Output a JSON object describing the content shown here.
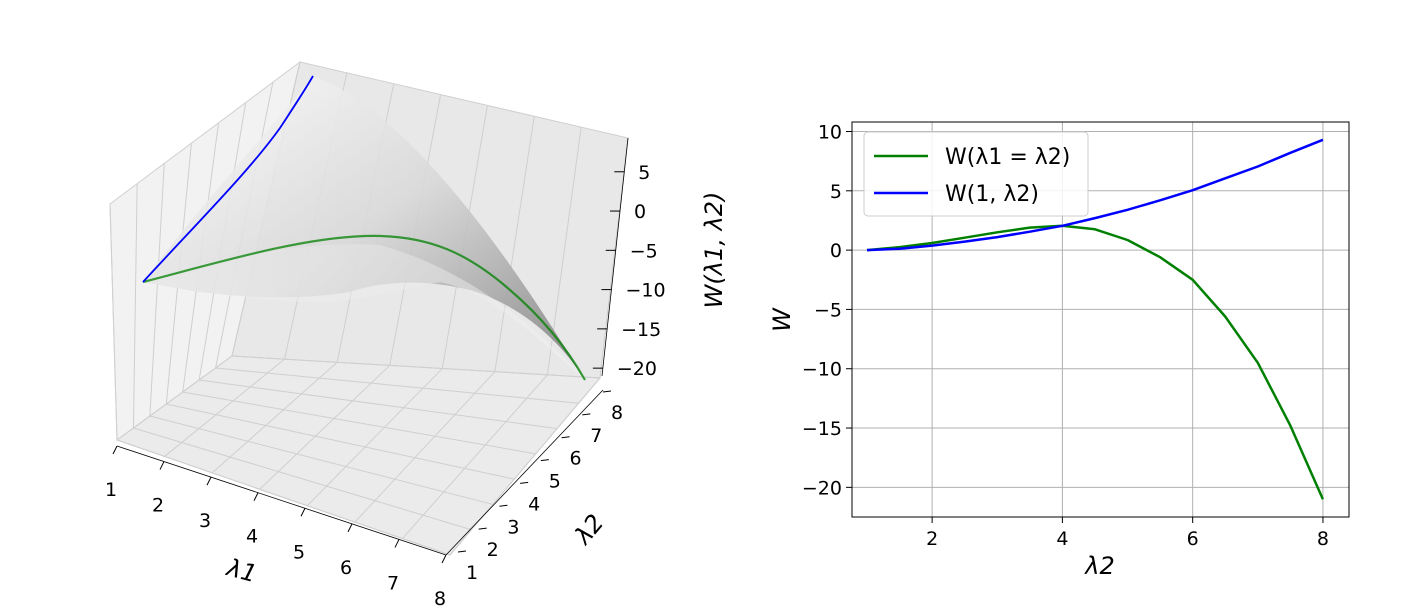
{
  "chart_data": [
    {
      "type": "surface3d",
      "title": "",
      "xlabel": "λ1",
      "ylabel": "λ2",
      "zlabel": "W(λ1, λ2)",
      "xticks": [
        "1",
        "2",
        "3",
        "4",
        "5",
        "6",
        "7",
        "8"
      ],
      "yticks": [
        "1",
        "2",
        "3",
        "4",
        "5",
        "6",
        "7",
        "8"
      ],
      "zticks": [
        "5",
        "0",
        "−5",
        "−10",
        "−15",
        "−20"
      ],
      "xlim": [
        1,
        8
      ],
      "ylim": [
        1,
        8
      ],
      "zlim": [
        -21,
        9.3
      ],
      "grid": true,
      "surface_color": "#808080",
      "curves": [
        {
          "name": "W(λ1 = λ2)",
          "color": "#008000",
          "x": [
            1,
            2,
            3,
            4,
            5,
            6,
            7,
            8
          ],
          "y": [
            1,
            2,
            3,
            4,
            5,
            6,
            7,
            8
          ],
          "z": [
            0,
            0.6,
            1.6,
            2.0,
            0.8,
            -2.5,
            -9.5,
            -21
          ]
        },
        {
          "name": "W(1, λ2)",
          "color": "#0000ff",
          "x": [
            1,
            1,
            1,
            1,
            1,
            1,
            1,
            1
          ],
          "y": [
            1,
            2,
            3,
            4,
            5,
            6,
            7,
            8
          ],
          "z": [
            0,
            0.35,
            1.05,
            2.1,
            3.5,
            5.1,
            7.1,
            9.3
          ]
        }
      ]
    },
    {
      "type": "line",
      "title": "",
      "xlabel": "λ2",
      "ylabel": "W",
      "xticks": [
        "2",
        "4",
        "6",
        "8"
      ],
      "yticks": [
        "10",
        "5",
        "0",
        "−5",
        "−10",
        "−15",
        "−20"
      ],
      "xlim": [
        0.77,
        8.4
      ],
      "ylim": [
        -22.5,
        10.8
      ],
      "grid": true,
      "legend_position": "upper-left",
      "series": [
        {
          "name": "W(λ1 = λ2)",
          "color": "#008000",
          "x": [
            1,
            1.5,
            2,
            2.5,
            3,
            3.5,
            4,
            4.5,
            5,
            5.5,
            6,
            6.5,
            7,
            7.5,
            8
          ],
          "y": [
            0,
            0.25,
            0.6,
            1.05,
            1.5,
            1.9,
            2.05,
            1.75,
            0.85,
            -0.6,
            -2.5,
            -5.6,
            -9.5,
            -14.8,
            -21
          ]
        },
        {
          "name": "W(1, λ2)",
          "color": "#0000ff",
          "x": [
            1,
            1.5,
            2,
            2.5,
            3,
            3.5,
            4,
            4.5,
            5,
            5.5,
            6,
            6.5,
            7,
            7.5,
            8
          ],
          "y": [
            0,
            0.12,
            0.38,
            0.72,
            1.1,
            1.55,
            2.05,
            2.7,
            3.4,
            4.2,
            5.05,
            6.05,
            7.05,
            8.2,
            9.3
          ]
        }
      ]
    }
  ]
}
